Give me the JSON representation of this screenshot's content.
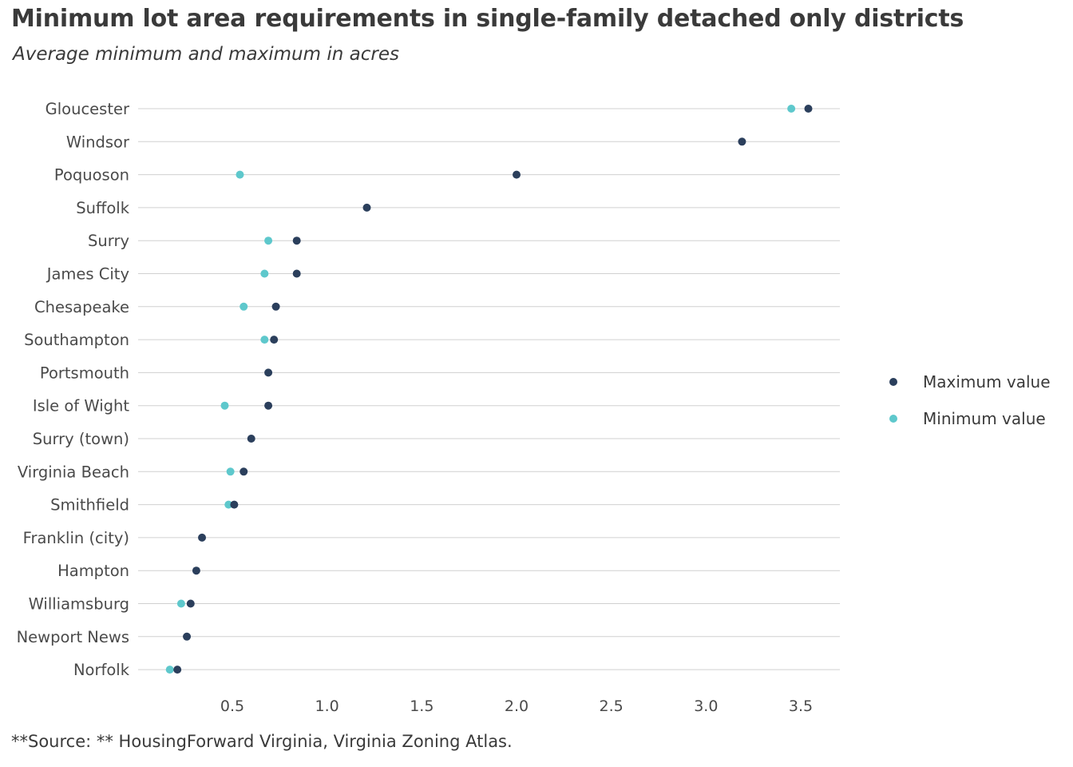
{
  "chart_data": {
    "type": "scatter",
    "subtype": "dot-plot",
    "title": "Minimum lot area requirements in single-family detached only districts",
    "subtitle": "Average minimum and maximum in acres",
    "caption": "**Source: ** HousingForward  Virginia, Virginia  Zoning Atlas.",
    "xlabel": "",
    "ylabel": "",
    "xlim": [
      0.0,
      3.7
    ],
    "xticks": [
      0.5,
      1.0,
      1.5,
      2.0,
      2.5,
      3.0,
      3.5
    ],
    "xtick_labels": [
      "0.5",
      "1.0",
      "1.5",
      "2.0",
      "2.5",
      "3.0",
      "3.5"
    ],
    "grid": "horizontal",
    "legend_position": "right",
    "categories": [
      "Gloucester",
      "Windsor",
      "Poquoson",
      "Suffolk",
      "Surry",
      "James City",
      "Chesapeake",
      "Southampton",
      "Portsmouth",
      "Isle of Wight",
      "Surry (town)",
      "Virginia Beach",
      "Smithfield",
      "Franklin (city)",
      "Hampton",
      "Williamsburg",
      "Newport News",
      "Norfolk"
    ],
    "series": [
      {
        "name": "Minimum value",
        "color": "#5ec8cc",
        "values": [
          3.45,
          null,
          0.54,
          null,
          0.69,
          0.67,
          0.56,
          0.67,
          null,
          0.46,
          null,
          0.49,
          0.48,
          null,
          null,
          0.23,
          null,
          0.17
        ]
      },
      {
        "name": "Maximum value",
        "color": "#2b3f5c",
        "values": [
          3.54,
          3.19,
          2.0,
          1.21,
          0.84,
          0.84,
          0.73,
          0.72,
          0.69,
          0.69,
          0.6,
          0.56,
          0.51,
          0.34,
          0.31,
          0.28,
          0.26,
          0.21
        ]
      }
    ],
    "legend_order": [
      "Maximum value",
      "Minimum value"
    ]
  },
  "colors": {
    "grid": "#d0d0d0",
    "text": "#3a3a3a"
  }
}
